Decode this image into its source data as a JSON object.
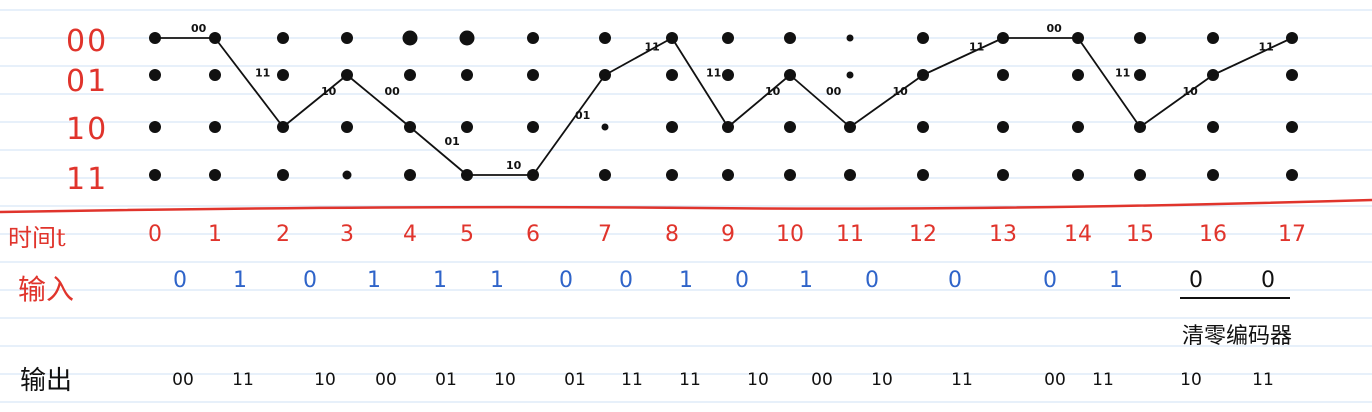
{
  "state_labels": [
    "00",
    "01",
    "10",
    "11"
  ],
  "row_headers": {
    "time": "时间t",
    "input": "输入",
    "output": "输出"
  },
  "times": [
    "0",
    "1",
    "2",
    "3",
    "4",
    "5",
    "6",
    "7",
    "8",
    "9",
    "10",
    "11",
    "12",
    "13",
    "14",
    "15",
    "16",
    "17"
  ],
  "inputs": [
    "0",
    "1",
    "0",
    "1",
    "1",
    "1",
    "0",
    "0",
    "1",
    "0",
    "1",
    "0",
    "0",
    "0",
    "1",
    "0",
    "0"
  ],
  "flush_inputs_note": "清零编码器",
  "outputs": [
    "00",
    "11",
    "10",
    "00",
    "01",
    "10",
    "01",
    "11",
    "11",
    "10",
    "00",
    "10",
    "11",
    "00",
    "11",
    "10",
    "11"
  ],
  "path_states": [
    0,
    0,
    2,
    1,
    2,
    3,
    3,
    1,
    0,
    2,
    1,
    2,
    1,
    0,
    0,
    2,
    1,
    0
  ],
  "branch_labels": [
    "00",
    "11",
    "10",
    "00",
    "01",
    "10",
    "01",
    "11",
    "11",
    "10",
    "00",
    "10",
    "11",
    "00",
    "11",
    "10",
    "11"
  ],
  "colors": {
    "red": "#e0342c",
    "blue": "#2f64c9",
    "ink": "#111111",
    "ruling": "#cfe0f5"
  }
}
